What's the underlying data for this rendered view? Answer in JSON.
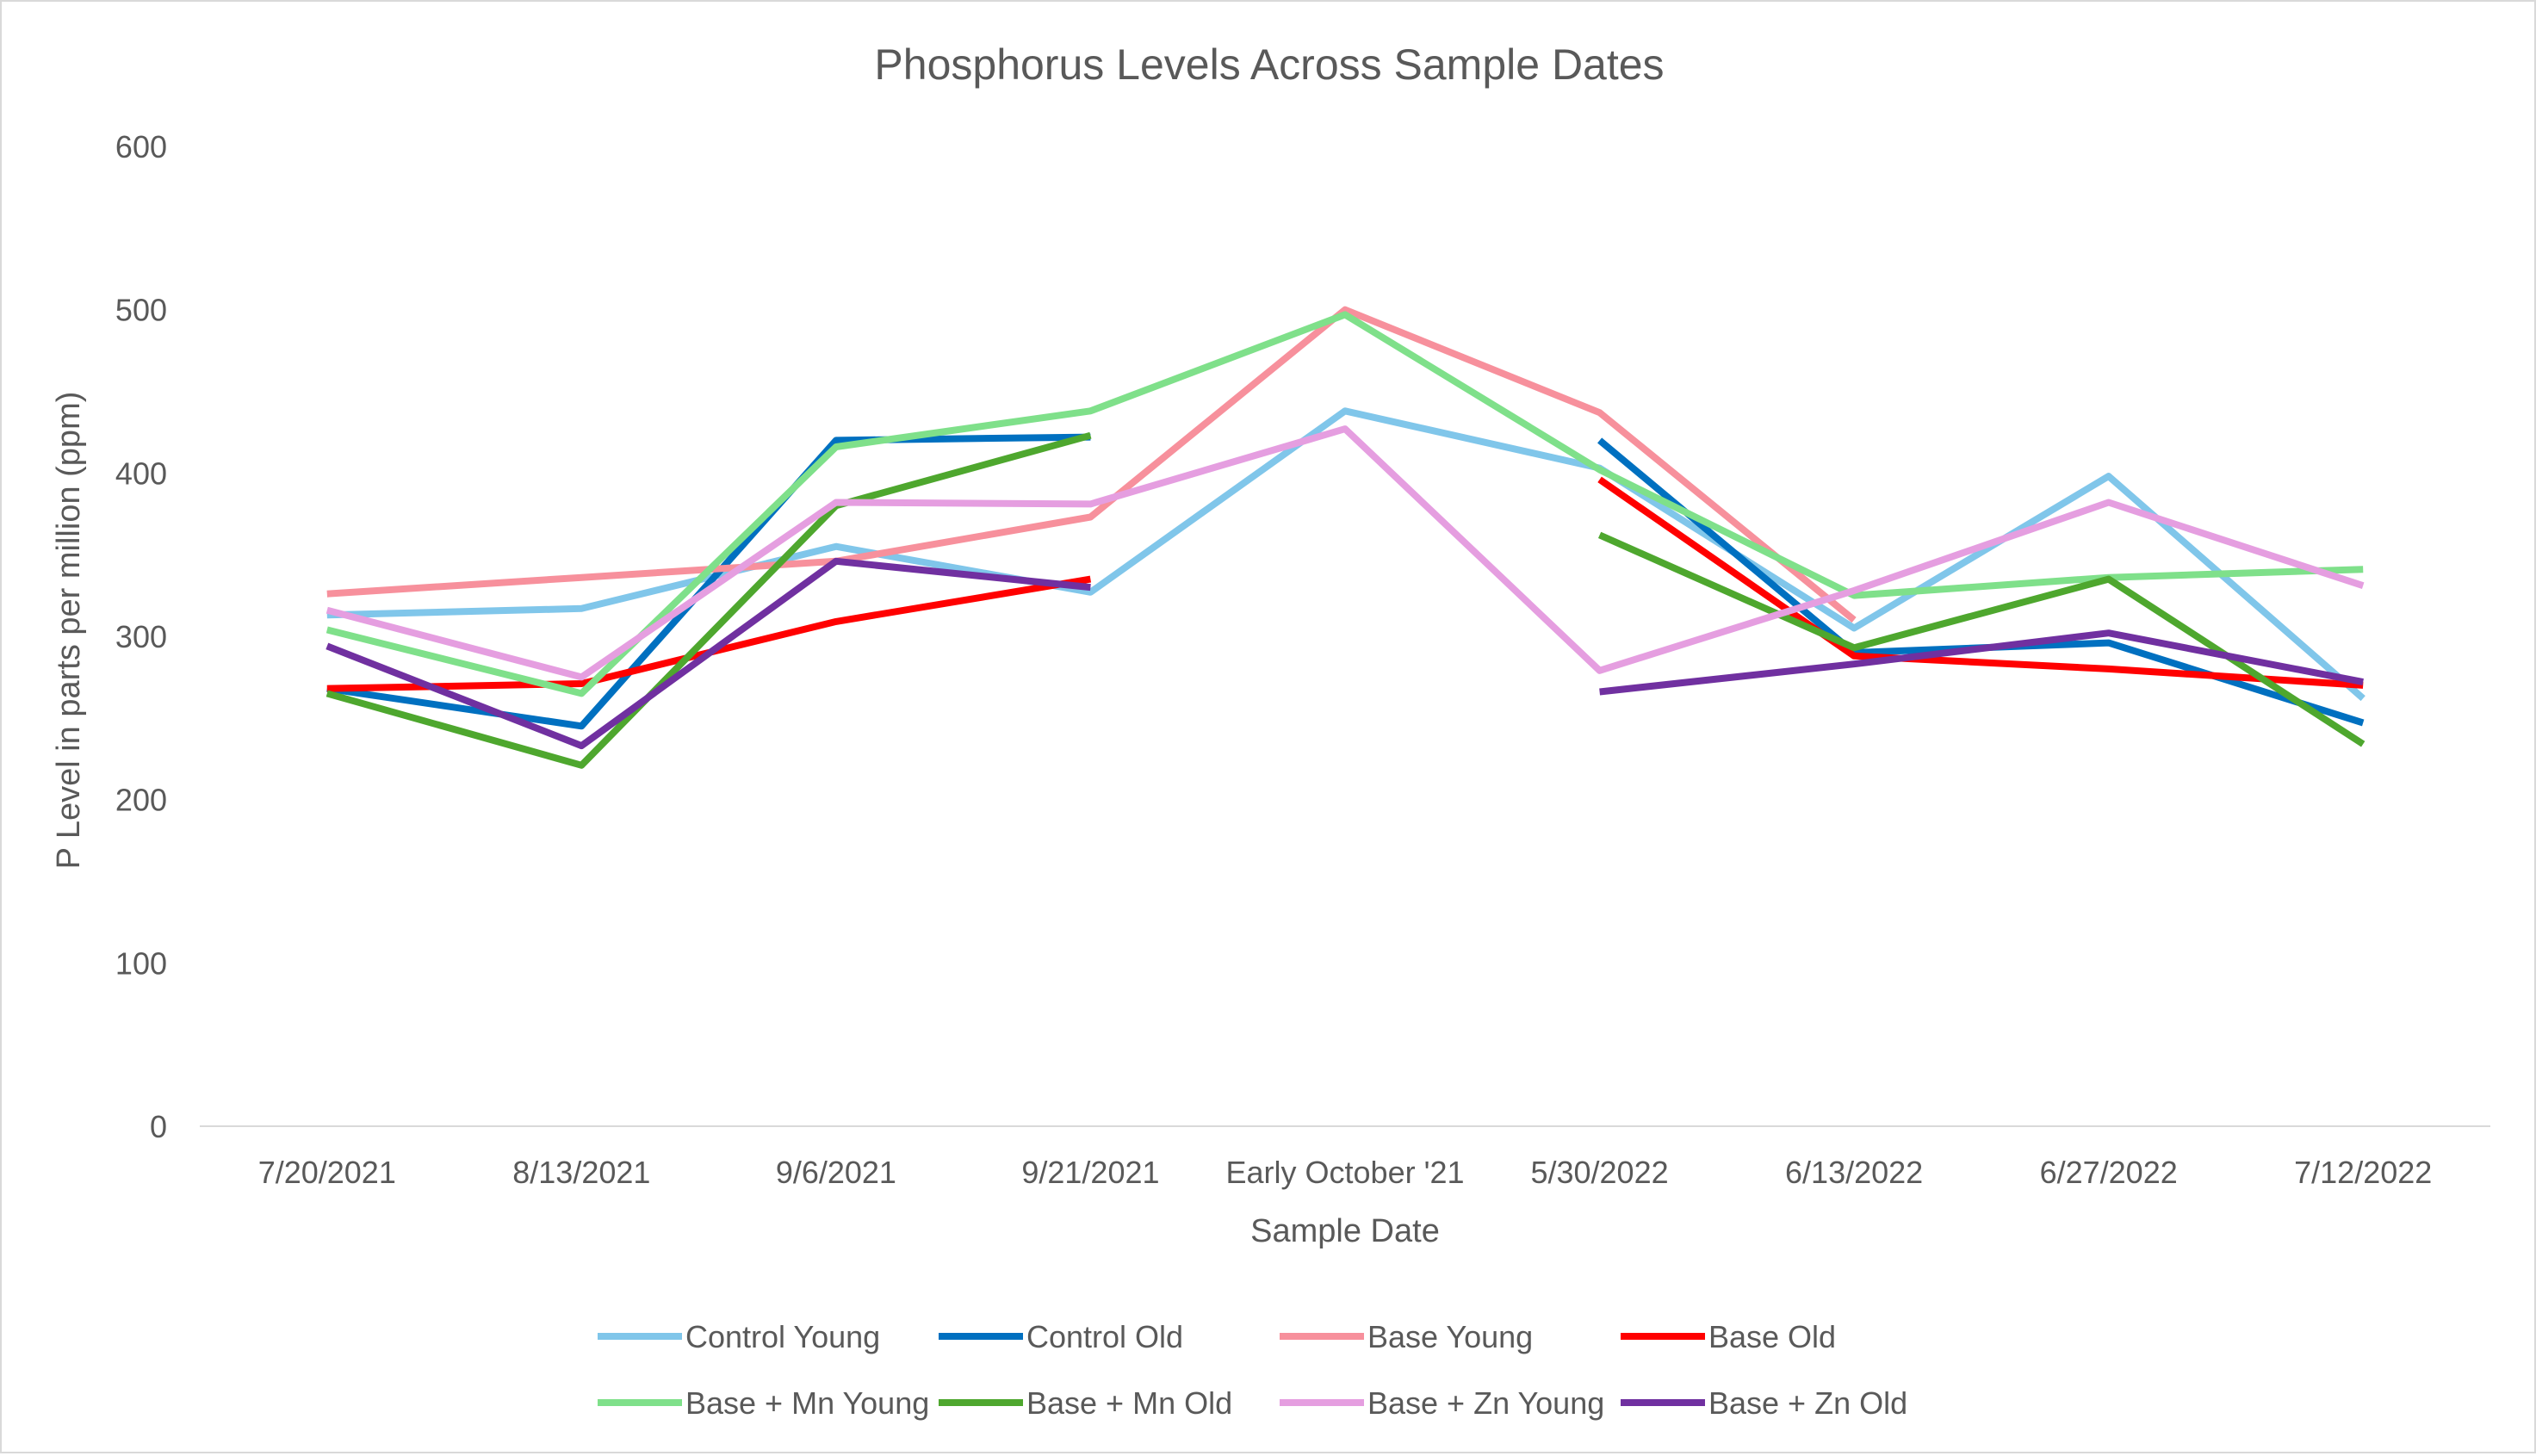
{
  "chart_data": {
    "type": "line",
    "title": "Phosphorus Levels Across Sample Dates",
    "xlabel": "Sample Date",
    "ylabel": "P Level in parts per million (ppm)",
    "ylim": [
      0,
      600
    ],
    "yticks": [
      "0",
      "100",
      "200",
      "300",
      "400",
      "500",
      "600"
    ],
    "grid": false,
    "legend_position": "bottom",
    "categories": [
      "7/20/2021",
      "8/13/2021",
      "9/6/2021",
      "9/21/2021",
      "Early October '21",
      "5/30/2022",
      "6/13/2022",
      "6/27/2022",
      "7/12/2022"
    ],
    "series": [
      {
        "name": "Control Young",
        "color": "#80c6ea",
        "values": [
          313,
          317,
          355,
          327,
          438,
          403,
          305,
          398,
          262
        ]
      },
      {
        "name": "Control Old",
        "color": "#0070c0",
        "values": [
          268,
          245,
          420,
          422,
          null,
          420,
          290,
          296,
          247
        ]
      },
      {
        "name": "Base Young",
        "color": "#f7909c",
        "values": [
          326,
          336,
          346,
          373,
          500,
          437,
          310,
          null,
          null
        ]
      },
      {
        "name": "Base Old",
        "color": "#ff0000",
        "values": [
          268,
          271,
          309,
          335,
          null,
          396,
          288,
          280,
          270
        ]
      },
      {
        "name": "Base + Mn Young",
        "color": "#7fe08a",
        "values": [
          304,
          265,
          416,
          438,
          497,
          402,
          325,
          336,
          341
        ]
      },
      {
        "name": "Base + Mn Old",
        "color": "#4ea72e",
        "values": [
          265,
          221,
          380,
          423,
          null,
          362,
          293,
          335,
          234
        ]
      },
      {
        "name": "Base + Zn Young",
        "color": "#e59ee0",
        "values": [
          316,
          275,
          382,
          381,
          427,
          279,
          328,
          382,
          331
        ]
      },
      {
        "name": "Base + Zn Old",
        "color": "#7030a0",
        "values": [
          294,
          233,
          346,
          330,
          null,
          266,
          283,
          302,
          272
        ]
      }
    ]
  }
}
